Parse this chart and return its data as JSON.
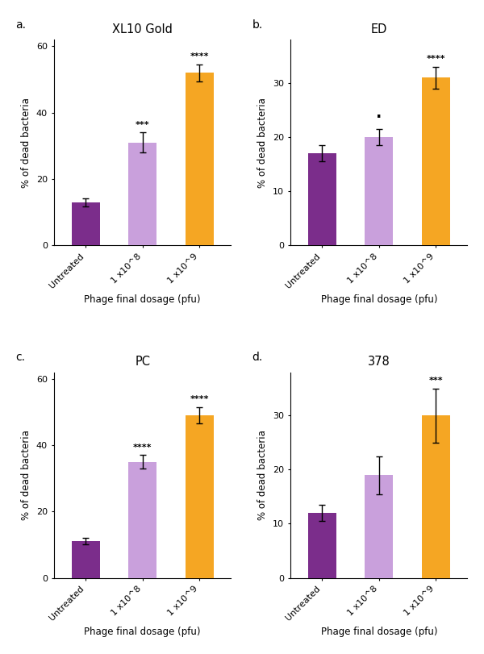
{
  "panels": [
    {
      "label": "a.",
      "title": "XL10 Gold",
      "values": [
        13.0,
        31.0,
        52.0
      ],
      "errors": [
        1.2,
        3.0,
        2.5
      ],
      "sig": [
        "",
        "***",
        "****"
      ],
      "ylim": [
        0,
        62
      ],
      "yticks": [
        0,
        20,
        40,
        60
      ],
      "ylabel": "% of dead bacteria"
    },
    {
      "label": "b.",
      "title": "ED",
      "values": [
        17.0,
        20.0,
        31.0
      ],
      "errors": [
        1.5,
        1.5,
        2.0
      ],
      "sig": [
        "",
        "·",
        "****"
      ],
      "ylim": [
        0,
        38
      ],
      "yticks": [
        0,
        10,
        20,
        30
      ],
      "ylabel": "% of dead bacteria"
    },
    {
      "label": "c.",
      "title": "PC",
      "values": [
        11.0,
        35.0,
        49.0
      ],
      "errors": [
        1.0,
        2.0,
        2.5
      ],
      "sig": [
        "",
        "****",
        "****"
      ],
      "ylim": [
        0,
        62
      ],
      "yticks": [
        0,
        20,
        40,
        60
      ],
      "ylabel": "% of dead bacteria"
    },
    {
      "label": "d.",
      "title": "378",
      "values": [
        12.0,
        19.0,
        30.0
      ],
      "errors": [
        1.5,
        3.5,
        5.0
      ],
      "sig": [
        "",
        "",
        "***"
      ],
      "ylim": [
        0,
        38
      ],
      "yticks": [
        0,
        10,
        20,
        30
      ],
      "ylabel": "% of dead bacteria"
    }
  ],
  "categories": [
    "Untreated",
    "1 x10^8",
    "1 x10^9"
  ],
  "bar_colors": [
    "#7b2d8b",
    "#c9a0dc",
    "#f5a623"
  ],
  "xlabel": "Phage final dosage (pfu)",
  "bar_width": 0.5,
  "capsize": 3,
  "error_color": "black",
  "error_linewidth": 1.0,
  "sig_fontsize": 8,
  "axis_fontsize": 8.5,
  "title_fontsize": 10.5,
  "label_fontsize": 10,
  "tick_fontsize": 8,
  "background_color": "#ffffff"
}
